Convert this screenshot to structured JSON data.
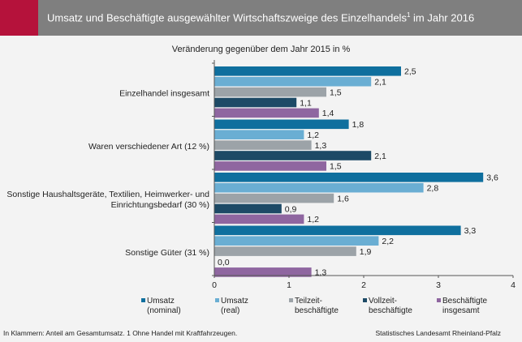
{
  "header": {
    "title": "Umsatz und Beschäftigte ausgewählter Wirtschaftszweige des Einzelhandels",
    "title_sup": "1",
    "title_end": " im Jahr 2016"
  },
  "footnote": "In Klammern: Anteil am Gesamtumsatz. 1 Ohne Handel mit Kraftfahrzeugen.",
  "source": "Statistisches Landesamt Rheinland-Pfalz",
  "chart_data": {
    "type": "bar",
    "orientation": "horizontal",
    "subtitle": "Veränderung gegenüber  dem Jahr 2015 in %",
    "categories": [
      [
        "Einzelhandel insgesamt"
      ],
      [
        "Waren verschiedener Art (12 %)"
      ],
      [
        "Sonstige Haushaltsgeräte, Textilien, Heimwerker- und",
        "Einrichtungsbedarf (30 %)"
      ],
      [
        "Sonstige Güter (31 %)"
      ]
    ],
    "series": [
      {
        "name": "Umsatz (nominal)",
        "legend": [
          "Umsatz",
          "(nominal)"
        ],
        "color": "#0f6f9e",
        "values": [
          2.5,
          1.8,
          3.6,
          3.3
        ],
        "labels": [
          "2,5",
          "1,8",
          "3,6",
          "3,3"
        ]
      },
      {
        "name": "Umsatz (real)",
        "legend": [
          "Umsatz",
          "(real)"
        ],
        "color": "#6aaed3",
        "values": [
          2.1,
          1.2,
          2.8,
          2.2
        ],
        "labels": [
          "2,1",
          "1,2",
          "2,8",
          "2,2"
        ]
      },
      {
        "name": "Teilzeitbeschäftigte",
        "legend": [
          "Teilzeit-",
          "beschäftigte"
        ],
        "color": "#9ca3a8",
        "values": [
          1.5,
          1.3,
          1.6,
          1.9
        ],
        "labels": [
          "1,5",
          "1,3",
          "1,6",
          "1,9"
        ]
      },
      {
        "name": "Vollzeitbeschäftigte",
        "legend": [
          "Vollzeit-",
          "beschäftigte"
        ],
        "color": "#1d4a66",
        "values": [
          1.1,
          2.1,
          0.9,
          0.0
        ],
        "labels": [
          "1,1",
          "2,1",
          "0,9",
          "0,0"
        ]
      },
      {
        "name": "Beschäftigte insgesamt",
        "legend": [
          "Beschäftigte",
          "insgesamt"
        ],
        "color": "#8f66a0",
        "values": [
          1.4,
          1.5,
          1.2,
          1.3
        ],
        "labels": [
          "1,4",
          "1,5",
          "1,2",
          "1,3"
        ]
      }
    ],
    "xlim": [
      0,
      4
    ],
    "xticks": [
      0,
      1,
      2,
      3,
      4
    ],
    "grid": false,
    "legend_position": "bottom"
  }
}
